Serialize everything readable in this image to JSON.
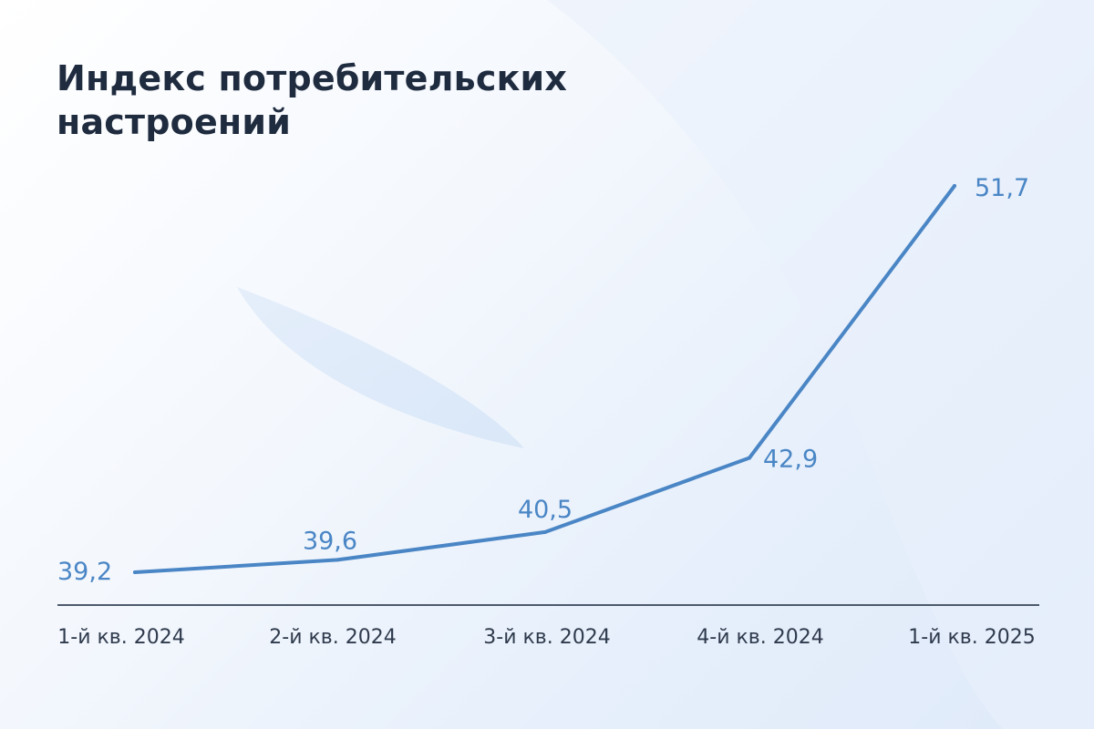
{
  "colors": {
    "line": "#4a86c5",
    "axis": "#4d5a6c",
    "title": "#1f2b3f",
    "tick": "#2f3b4d"
  },
  "chart_data": {
    "type": "line",
    "title": "Индекс потребительских настроений",
    "xlabel": "",
    "ylabel": "",
    "categories": [
      "1-й кв. 2024",
      "2-й кв. 2024",
      "3-й кв. 2024",
      "4-й кв. 2024",
      "1-й кв. 2025"
    ],
    "series": [
      {
        "values": [
          39.2,
          39.6,
          40.5,
          42.9,
          51.7
        ],
        "labels": [
          "39,2",
          "39,6",
          "40,5",
          "42,9",
          "51,7"
        ]
      }
    ],
    "grid": false,
    "legend": "none"
  }
}
